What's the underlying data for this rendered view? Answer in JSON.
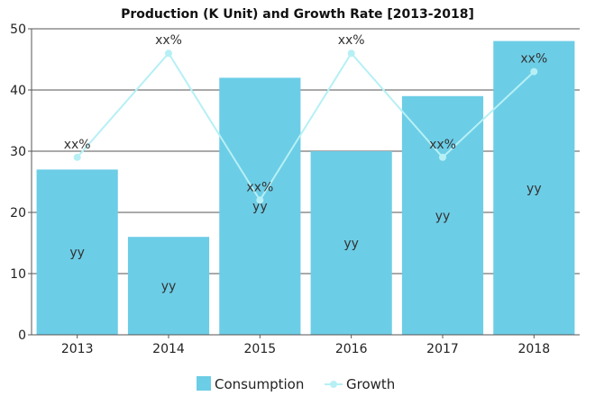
{
  "chart_data": {
    "type": "bar",
    "title": "Production (K Unit) and Growth Rate [2013-2018]",
    "categories": [
      "2013",
      "2014",
      "2015",
      "2016",
      "2017",
      "2018"
    ],
    "ylim": [
      0,
      50
    ],
    "yticks": [
      "0",
      "10",
      "20",
      "30",
      "40",
      "50"
    ],
    "grid": true,
    "legend_position": "bottom",
    "series": [
      {
        "name": "Consumption",
        "type": "bar",
        "color": "#6ccde6",
        "values": [
          27,
          16,
          42,
          30,
          39,
          48
        ],
        "labels": [
          "yy",
          "yy",
          "yy",
          "yy",
          "yy",
          "yy"
        ]
      },
      {
        "name": "Growth",
        "type": "line",
        "color": "#b6f0f5",
        "values": [
          29,
          46,
          22,
          46,
          29,
          43
        ],
        "labels": [
          "xx%",
          "xx%",
          "xx%",
          "xx%",
          "xx%",
          "xx%"
        ]
      }
    ]
  }
}
